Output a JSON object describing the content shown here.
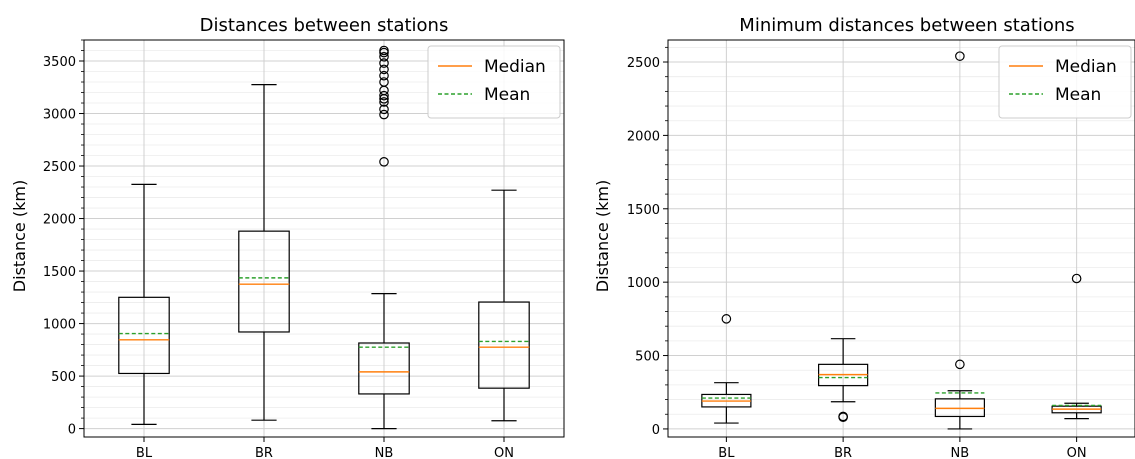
{
  "chart_data": [
    {
      "type": "box",
      "title": "Distances between stations",
      "xlabel": "",
      "ylabel": "Distance (km)",
      "ylim": [
        -80,
        3700
      ],
      "yticks": [
        0,
        500,
        1000,
        1500,
        2000,
        2500,
        3000,
        3500
      ],
      "grid": true,
      "legend": {
        "placement": "top-right",
        "entries": [
          "Median",
          "Mean"
        ]
      },
      "categories": [
        "BL",
        "BR",
        "NB",
        "ON"
      ],
      "boxes": [
        {
          "category": "BL",
          "whisker_low": 40,
          "q1": 525,
          "median": 845,
          "mean": 905,
          "q3": 1250,
          "whisker_high": 2325,
          "outliers": []
        },
        {
          "category": "BR",
          "whisker_low": 80,
          "q1": 920,
          "median": 1375,
          "mean": 1435,
          "q3": 1880,
          "whisker_high": 3275,
          "outliers": []
        },
        {
          "category": "NB",
          "whisker_low": 0,
          "q1": 330,
          "median": 540,
          "mean": 775,
          "q3": 815,
          "whisker_high": 1285,
          "outliers": [
            2540,
            2990,
            3040,
            3110,
            3140,
            3170,
            3220,
            3300,
            3360,
            3420,
            3480,
            3540,
            3580,
            3600
          ]
        },
        {
          "category": "ON",
          "whisker_low": 75,
          "q1": 385,
          "median": 775,
          "mean": 830,
          "q3": 1205,
          "whisker_high": 2270,
          "outliers": []
        }
      ]
    },
    {
      "type": "box",
      "title": "Minimum distances between stations",
      "xlabel": "",
      "ylabel": "Distance (km)",
      "ylim": [
        -55,
        2650
      ],
      "yticks": [
        0,
        500,
        1000,
        1500,
        2000,
        2500
      ],
      "grid": true,
      "legend": {
        "placement": "top-right",
        "entries": [
          "Median",
          "Mean"
        ]
      },
      "categories": [
        "BL",
        "BR",
        "NB",
        "ON"
      ],
      "boxes": [
        {
          "category": "BL",
          "whisker_low": 40,
          "q1": 150,
          "median": 190,
          "mean": 210,
          "q3": 235,
          "whisker_high": 315,
          "outliers": [
            750
          ]
        },
        {
          "category": "BR",
          "whisker_low": 185,
          "q1": 295,
          "median": 370,
          "mean": 350,
          "q3": 440,
          "whisker_high": 615,
          "outliers": [
            80,
            85
          ]
        },
        {
          "category": "NB",
          "whisker_low": 0,
          "q1": 85,
          "median": 140,
          "mean": 245,
          "q3": 205,
          "whisker_high": 260,
          "outliers": [
            440,
            2540
          ]
        },
        {
          "category": "ON",
          "whisker_low": 70,
          "q1": 110,
          "median": 135,
          "mean": 160,
          "q3": 155,
          "whisker_high": 175,
          "outliers": [
            1025
          ]
        }
      ]
    }
  ],
  "colors": {
    "median": "#ff7f0e",
    "mean": "#2ca02c",
    "box": "#000000",
    "grid_major": "#d0d0d0",
    "grid_minor": "#ececec"
  }
}
